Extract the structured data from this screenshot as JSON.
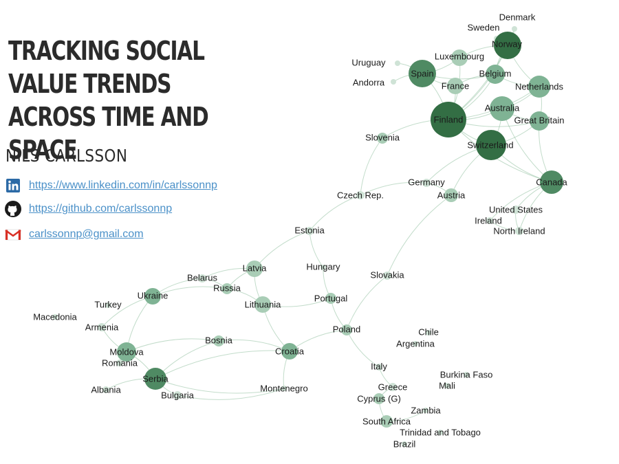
{
  "title": "TRACKING SOCIAL VALUE TRENDS ACROSS TIME AND SPACE",
  "author": "NILS CARLSSON",
  "contacts": {
    "linkedin": {
      "text": "https://www.linkedin.com/in/carlssonnp",
      "icon": "linkedin-icon"
    },
    "github": {
      "text": "https://github.com/carlssonnp",
      "icon": "github-icon"
    },
    "email": {
      "text": "carlssonnp@gmail.com",
      "icon": "gmail-icon"
    }
  },
  "network": {
    "node_colors": [
      "#cfe3d6",
      "#a9cdb6",
      "#7fb394",
      "#4f8a63",
      "#336e44"
    ],
    "edge_color": "#8fbf9f",
    "nodes": [
      {
        "id": "Denmark",
        "label": "Denmark"
      },
      {
        "id": "Sweden",
        "label": "Sweden"
      },
      {
        "id": "Norway",
        "label": "Norway"
      },
      {
        "id": "Luxembourg",
        "label": "Luxembourg"
      },
      {
        "id": "Uruguay",
        "label": "Uruguay"
      },
      {
        "id": "Spain",
        "label": "Spain"
      },
      {
        "id": "Belgium",
        "label": "Belgium"
      },
      {
        "id": "Andorra",
        "label": "Andorra"
      },
      {
        "id": "France",
        "label": "France"
      },
      {
        "id": "Netherlands",
        "label": "Netherlands"
      },
      {
        "id": "Australia",
        "label": "Australia"
      },
      {
        "id": "Finland",
        "label": "Finland"
      },
      {
        "id": "Great Britain",
        "label": "Great Britain"
      },
      {
        "id": "Slovenia",
        "label": "Slovenia"
      },
      {
        "id": "Switzerland",
        "label": "Switzerland"
      },
      {
        "id": "Germany",
        "label": "Germany"
      },
      {
        "id": "Canada",
        "label": "Canada"
      },
      {
        "id": "Czech Rep.",
        "label": "Czech Rep."
      },
      {
        "id": "Austria",
        "label": "Austria"
      },
      {
        "id": "United States",
        "label": "United States"
      },
      {
        "id": "Ireland",
        "label": "Ireland"
      },
      {
        "id": "North Ireland",
        "label": "North Ireland"
      },
      {
        "id": "Estonia",
        "label": "Estonia"
      },
      {
        "id": "Latvia",
        "label": "Latvia"
      },
      {
        "id": "Hungary",
        "label": "Hungary"
      },
      {
        "id": "Belarus",
        "label": "Belarus"
      },
      {
        "id": "Slovakia",
        "label": "Slovakia"
      },
      {
        "id": "Russia",
        "label": "Russia"
      },
      {
        "id": "Ukraine",
        "label": "Ukraine"
      },
      {
        "id": "Portugal",
        "label": "Portugal"
      },
      {
        "id": "Turkey",
        "label": "Turkey"
      },
      {
        "id": "Lithuania",
        "label": "Lithuania"
      },
      {
        "id": "Macedonia",
        "label": "Macedonia"
      },
      {
        "id": "Armenia",
        "label": "Armenia"
      },
      {
        "id": "Poland",
        "label": "Poland"
      },
      {
        "id": "Chile",
        "label": "Chile"
      },
      {
        "id": "Bosnia",
        "label": "Bosnia"
      },
      {
        "id": "Argentina",
        "label": "Argentina"
      },
      {
        "id": "Moldova",
        "label": "Moldova"
      },
      {
        "id": "Croatia",
        "label": "Croatia"
      },
      {
        "id": "Romania",
        "label": "Romania"
      },
      {
        "id": "Italy",
        "label": "Italy"
      },
      {
        "id": "Burkina Faso",
        "label": "Burkina Faso"
      },
      {
        "id": "Serbia",
        "label": "Serbia"
      },
      {
        "id": "Mali",
        "label": "Mali"
      },
      {
        "id": "Greece",
        "label": "Greece"
      },
      {
        "id": "Montenegro",
        "label": "Montenegro"
      },
      {
        "id": "Albania",
        "label": "Albania"
      },
      {
        "id": "Bulgaria",
        "label": "Bulgaria"
      },
      {
        "id": "Cyprus (G)",
        "label": "Cyprus (G)"
      },
      {
        "id": "Zambia",
        "label": "Zambia"
      },
      {
        "id": "South Africa",
        "label": "South Africa"
      },
      {
        "id": "Trinidad and Tobago",
        "label": "Trinidad and Tobago"
      },
      {
        "id": "Brazil",
        "label": "Brazil"
      }
    ],
    "edges": [
      [
        "Finland",
        "Norway"
      ],
      [
        "Finland",
        "Spain"
      ],
      [
        "Finland",
        "Switzerland"
      ],
      [
        "Finland",
        "Australia"
      ],
      [
        "Finland",
        "Great Britain"
      ],
      [
        "Finland",
        "Netherlands"
      ],
      [
        "Finland",
        "Belgium"
      ],
      [
        "Finland",
        "France"
      ],
      [
        "Finland",
        "Luxembourg"
      ],
      [
        "Finland",
        "Canada"
      ],
      [
        "Finland",
        "Slovenia"
      ],
      [
        "Finland",
        "Denmark"
      ],
      [
        "Norway",
        "Denmark"
      ],
      [
        "Norway",
        "Sweden"
      ],
      [
        "Norway",
        "Netherlands"
      ],
      [
        "Norway",
        "Belgium"
      ],
      [
        "Norway",
        "Luxembourg"
      ],
      [
        "Spain",
        "France"
      ],
      [
        "Spain",
        "Luxembourg"
      ],
      [
        "Spain",
        "Belgium"
      ],
      [
        "Spain",
        "Uruguay"
      ],
      [
        "Spain",
        "Andorra"
      ],
      [
        "Switzerland",
        "Australia"
      ],
      [
        "Switzerland",
        "Canada"
      ],
      [
        "Switzerland",
        "Great Britain"
      ],
      [
        "Switzerland",
        "Austria"
      ],
      [
        "Switzerland",
        "Germany"
      ],
      [
        "Australia",
        "Great Britain"
      ],
      [
        "Australia",
        "Netherlands"
      ],
      [
        "Australia",
        "Canada"
      ],
      [
        "Great Britain",
        "Canada"
      ],
      [
        "Great Britain",
        "Netherlands"
      ],
      [
        "Belgium",
        "Netherlands"
      ],
      [
        "Belgium",
        "France"
      ],
      [
        "Canada",
        "United States"
      ],
      [
        "Canada",
        "Ireland"
      ],
      [
        "Canada",
        "North Ireland"
      ],
      [
        "Ireland",
        "North Ireland"
      ],
      [
        "United States",
        "North Ireland"
      ],
      [
        "Austria",
        "Germany"
      ],
      [
        "Germany",
        "Czech Rep."
      ],
      [
        "Austria",
        "Slovakia"
      ],
      [
        "Czech Rep.",
        "Estonia"
      ],
      [
        "Slovenia",
        "Czech Rep."
      ],
      [
        "Estonia",
        "Latvia"
      ],
      [
        "Estonia",
        "Hungary"
      ],
      [
        "Latvia",
        "Lithuania"
      ],
      [
        "Latvia",
        "Russia"
      ],
      [
        "Latvia",
        "Belarus"
      ],
      [
        "Russia",
        "Belarus"
      ],
      [
        "Russia",
        "Ukraine"
      ],
      [
        "Belarus",
        "Ukraine"
      ],
      [
        "Lithuania",
        "Russia"
      ],
      [
        "Ukraine",
        "Moldova"
      ],
      [
        "Ukraine",
        "Armenia"
      ],
      [
        "Lithuania",
        "Portugal"
      ],
      [
        "Hungary",
        "Portugal"
      ],
      [
        "Portugal",
        "Poland"
      ],
      [
        "Slovakia",
        "Poland"
      ],
      [
        "Poland",
        "Croatia"
      ],
      [
        "Croatia",
        "Bosnia"
      ],
      [
        "Croatia",
        "Serbia"
      ],
      [
        "Croatia",
        "Montenegro"
      ],
      [
        "Bosnia",
        "Serbia"
      ],
      [
        "Bosnia",
        "Moldova"
      ],
      [
        "Serbia",
        "Bulgaria"
      ],
      [
        "Serbia",
        "Montenegro"
      ],
      [
        "Serbia",
        "Moldova"
      ],
      [
        "Serbia",
        "Albania"
      ],
      [
        "Moldova",
        "Romania"
      ],
      [
        "Bulgaria",
        "Montenegro"
      ],
      [
        "Poland",
        "Italy"
      ],
      [
        "Italy",
        "Greece"
      ],
      [
        "Greece",
        "Cyprus (G)"
      ],
      [
        "Cyprus (G)",
        "South Africa"
      ],
      [
        "South Africa",
        "Zambia"
      ],
      [
        "Lithuania",
        "Croatia"
      ],
      [
        "Armenia",
        "Moldova"
      ]
    ]
  }
}
